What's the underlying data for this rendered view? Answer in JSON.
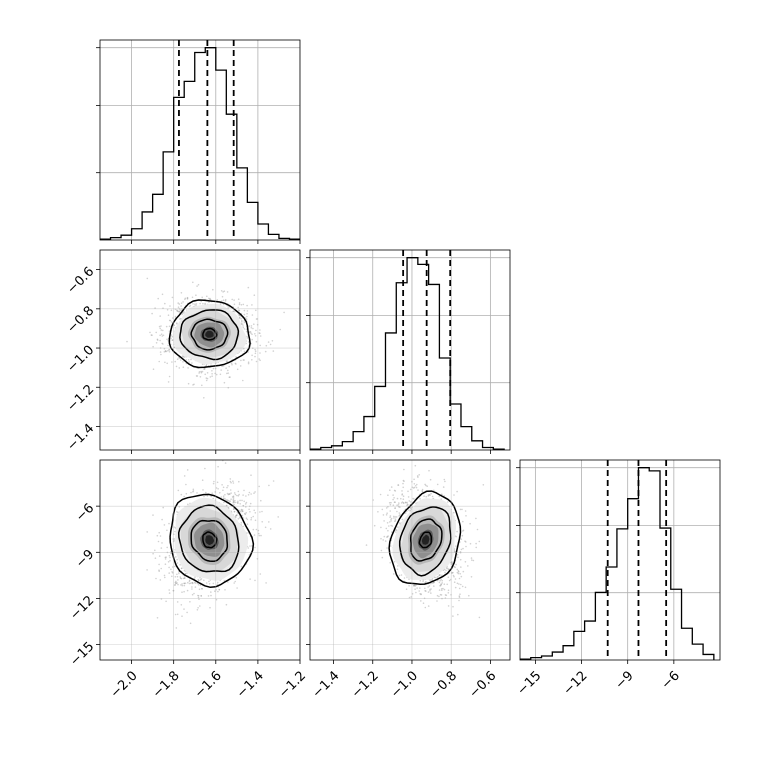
{
  "chart_data": {
    "type": "corner",
    "parameters": [
      "p1",
      "p2",
      "p3"
    ],
    "ranges": {
      "p1": [
        -2.15,
        -1.2
      ],
      "p2": [
        -1.52,
        -0.5
      ],
      "p3": [
        -16.0,
        -3.0
      ]
    },
    "ticks": {
      "p1": [
        -2.0,
        -1.8,
        -1.6,
        -1.4,
        -1.2
      ],
      "p2": [
        -1.4,
        -1.2,
        -1.0,
        -0.8,
        -0.6
      ],
      "p3": [
        -15,
        -12,
        -9,
        -6
      ]
    },
    "tick_labels": {
      "p1": [
        "−2.0",
        "−1.8",
        "−1.6",
        "−1.4",
        "−1.2"
      ],
      "p2": [
        "−1.4",
        "−1.2",
        "−1.0",
        "−0.8",
        "−0.6"
      ],
      "p3": [
        "−15",
        "−12",
        "−9",
        "−6"
      ]
    },
    "quantiles": {
      "p1": [
        -1.775,
        -1.64,
        -1.515
      ],
      "p2": [
        -1.045,
        -0.925,
        -0.805
      ],
      "p3": [
        -10.3,
        -8.3,
        -6.5
      ]
    },
    "histograms": {
      "p1": {
        "edges": [
          -2.15,
          -2.1,
          -2.05,
          -2.0,
          -1.95,
          -1.9,
          -1.85,
          -1.8,
          -1.75,
          -1.7,
          -1.65,
          -1.6,
          -1.55,
          -1.5,
          -1.45,
          -1.4,
          -1.35,
          -1.3,
          -1.25,
          -1.2
        ],
        "counts": [
          1,
          3,
          6,
          14,
          35,
          57,
          110,
          178,
          198,
          234,
          240,
          212,
          157,
          90,
          47,
          20,
          7,
          2,
          1
        ]
      },
      "p2": {
        "edges": [
          -1.52,
          -1.465,
          -1.41,
          -1.355,
          -1.3,
          -1.245,
          -1.19,
          -1.135,
          -1.08,
          -1.025,
          -0.97,
          -0.915,
          -0.86,
          -0.805,
          -0.75,
          -0.695,
          -0.64,
          -0.585,
          -0.53
        ],
        "counts": [
          1,
          3,
          5,
          10,
          22,
          40,
          76,
          140,
          200,
          230,
          222,
          198,
          110,
          55,
          28,
          11,
          3,
          1
        ]
      },
      "p3": {
        "edges": [
          -16.0,
          -15.3,
          -14.6,
          -13.9,
          -13.2,
          -12.5,
          -11.8,
          -11.1,
          -10.4,
          -9.7,
          -9.0,
          -8.3,
          -7.6,
          -6.9,
          -6.2,
          -5.5,
          -4.8,
          -4.1,
          -3.4
        ],
        "counts": [
          1,
          3,
          5,
          10,
          18,
          36,
          49,
          85,
          117,
          165,
          203,
          242,
          238,
          166,
          89,
          40,
          20,
          7
        ]
      }
    },
    "density_2d": [
      {
        "x": "p1",
        "y": "p2",
        "mean": [
          -1.63,
          -0.93
        ],
        "sd": [
          0.1,
          0.09
        ],
        "rho": 0.0
      },
      {
        "x": "p1",
        "y": "p3",
        "mean": [
          -1.63,
          -8.2
        ],
        "sd": [
          0.1,
          1.65
        ],
        "rho": 0.35
      },
      {
        "x": "p2",
        "y": "p3",
        "mean": [
          -0.93,
          -8.2
        ],
        "sd": [
          0.09,
          1.65
        ],
        "rho": -0.25
      }
    ],
    "contour_sigma_levels": [
      0.5,
      1.0,
      1.5,
      2.0
    ],
    "grid": true,
    "colors": {
      "line": "#000000",
      "grid": "#b0b0b0",
      "points": "#9a9a9a"
    }
  }
}
